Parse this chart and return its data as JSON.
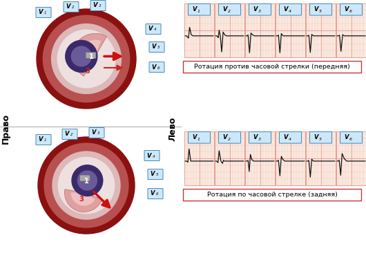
{
  "ecg_bg": "#fae8e0",
  "ecg_grid_major": "#e09080",
  "ecg_grid_minor": "#f0c0b0",
  "ecg_line_color": "#111111",
  "label_bg": "#cce8f8",
  "label_border": "#4488bb",
  "title1": "Ротация против часовой стрелки (передняя)",
  "title2": "Ротация по часовой стрелке (задняя)",
  "title_bg": "#ffffff",
  "title_border": "#cc3333",
  "left_label": "Лево",
  "right_label": "Право",
  "leads": [
    "V1",
    "V2",
    "V3",
    "V4",
    "V5",
    "V6"
  ],
  "leads_sup": [
    "1",
    "2",
    "3",
    "4",
    "5",
    "6"
  ],
  "heart_outer": "#8b1010",
  "heart_mid": "#c06060",
  "heart_inner_light": "#e8c8c8",
  "heart_rvent_color": "#d4a0a0",
  "heart_lvent_dark": "#3a2a6a",
  "heart_lvent_light": "#6a5a9a",
  "heart_septum": "#c05050",
  "heart_gray": "#909090",
  "arrow_red": "#cc1111",
  "white": "#ffffff",
  "bg": "#f0f0f0"
}
